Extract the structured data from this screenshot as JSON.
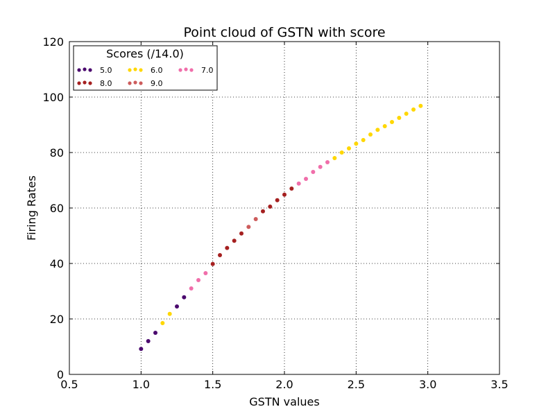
{
  "chart_data": {
    "type": "scatter",
    "title": "Point cloud of GSTN with score",
    "xlabel": "GSTN values",
    "ylabel": "Firing Rates",
    "xlim": [
      0.5,
      3.5
    ],
    "ylim": [
      0,
      120
    ],
    "x_ticks": [
      "0.5",
      "1.0",
      "1.5",
      "2.0",
      "2.5",
      "3.0",
      "3.5"
    ],
    "y_ticks": [
      "0",
      "20",
      "40",
      "60",
      "80",
      "100",
      "120"
    ],
    "grid": true,
    "legend": {
      "title": "Scores (/14.0)",
      "placement": "top-left",
      "columns": 3
    },
    "series": [
      {
        "name": "5.0",
        "color": "#4b0a6e",
        "points": [
          [
            1.0,
            9.2
          ],
          [
            1.05,
            12.0
          ],
          [
            1.1,
            15.0
          ],
          [
            1.25,
            24.5
          ],
          [
            1.3,
            27.8
          ]
        ]
      },
      {
        "name": "6.0",
        "color": "#ffd700",
        "points": [
          [
            1.15,
            18.5
          ],
          [
            1.2,
            21.8
          ],
          [
            2.35,
            78.0
          ],
          [
            2.4,
            80.0
          ],
          [
            2.45,
            81.5
          ],
          [
            2.5,
            83.2
          ],
          [
            2.55,
            84.5
          ],
          [
            2.6,
            86.5
          ],
          [
            2.65,
            88.2
          ],
          [
            2.7,
            89.5
          ],
          [
            2.75,
            91.0
          ],
          [
            2.8,
            92.5
          ],
          [
            2.85,
            94.0
          ],
          [
            2.9,
            95.5
          ],
          [
            2.95,
            96.8
          ]
        ]
      },
      {
        "name": "7.0",
        "color": "#f06eaa",
        "points": [
          [
            1.35,
            31.0
          ],
          [
            1.4,
            34.0
          ],
          [
            1.45,
            36.5
          ],
          [
            2.1,
            68.8
          ],
          [
            2.15,
            70.5
          ],
          [
            2.2,
            73.0
          ],
          [
            2.25,
            74.8
          ],
          [
            2.3,
            76.5
          ]
        ]
      },
      {
        "name": "8.0",
        "color": "#a52020",
        "points": [
          [
            1.5,
            39.8
          ],
          [
            1.55,
            43.0
          ],
          [
            1.6,
            45.6
          ],
          [
            1.65,
            48.2
          ],
          [
            1.7,
            50.8
          ],
          [
            1.85,
            58.8
          ],
          [
            1.9,
            60.5
          ],
          [
            1.95,
            62.8
          ],
          [
            2.0,
            64.8
          ],
          [
            2.05,
            67.0
          ]
        ]
      },
      {
        "name": "9.0",
        "color": "#cd5c5c",
        "points": [
          [
            1.75,
            53.2
          ],
          [
            1.8,
            56.0
          ]
        ]
      }
    ]
  }
}
